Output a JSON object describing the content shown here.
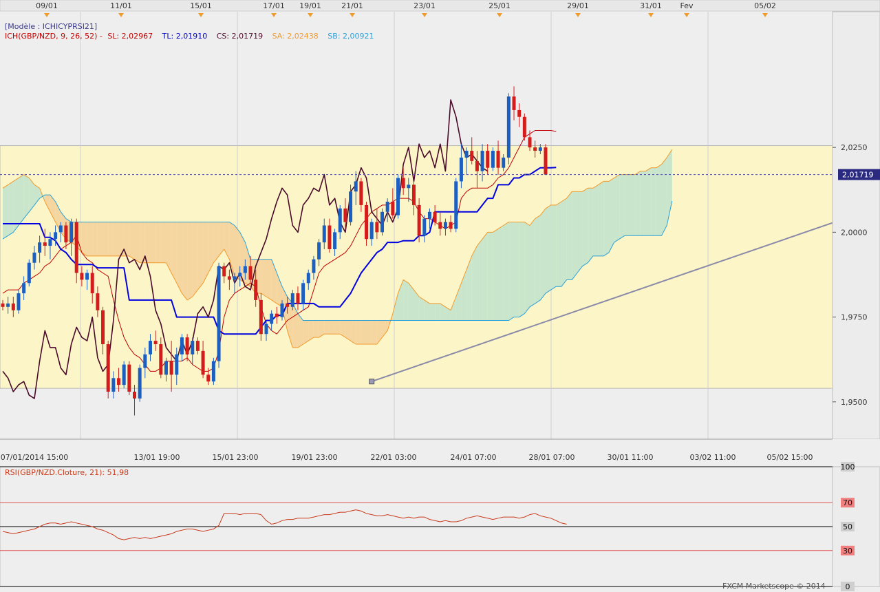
{
  "model_label": "[Modèle : ICHICYPRSI21]",
  "indicator": {
    "prefix": "ICH(GBP/NZD, 9, 26, 52) - ",
    "sl_text": "SL: 2,02967",
    "tl_text": "TL: 2,01910",
    "cs_text": "CS: 2,01719",
    "sa_text": "SA: 2,02438",
    "sb_text": "SB: 2,00921"
  },
  "rsi_label": "RSI(GBP/NZD.Cloture, 21): 51,98",
  "copyright": "FXCM Marketscope © 2014",
  "current_price_label": "2,01719",
  "top_dates": [
    "09/01",
    "11/01",
    "15/01",
    "17/01",
    "19/01",
    "21/01",
    "23/01",
    "25/01",
    "29/01",
    "31/01",
    "Fev",
    "05/02"
  ],
  "bottom_dates": [
    "07/01/2014 15:00",
    "13/01 19:00",
    "15/01 23:00",
    "19/01 23:00",
    "22/01 03:00",
    "24/01 07:00",
    "28/01 07:00",
    "30/01 11:00",
    "03/02 11:00",
    "05/02 15:00"
  ],
  "price_ticks": [
    "2,0250",
    "2,0000",
    "1,9750",
    "1,9500"
  ],
  "rsi_ticks": [
    "100",
    "70",
    "50",
    "30",
    "0"
  ],
  "colors": {
    "up": "#1c5fc0",
    "down": "#d41c1c",
    "tenkan": "#0000e0",
    "kijun": "#c00000",
    "chikou": "#4a0a2a",
    "senkou_a": "#f39a2c",
    "senkou_b": "#2aa0d8",
    "cloud_bull": "#c9e6cc",
    "cloud_bear": "#f5d6a0",
    "band": "#fbf5c8",
    "rsi": "#c83a1a"
  },
  "chart_data": {
    "type": "candlestick",
    "ylim": [
      1.939,
      2.065
    ],
    "rsi_ylim": [
      0,
      100
    ],
    "band": [
      1.954,
      2.0255
    ],
    "candles": [
      [
        1.979,
        1.98,
        1.977,
        1.978
      ],
      [
        1.978,
        1.981,
        1.976,
        1.979
      ],
      [
        1.979,
        1.981,
        1.975,
        1.977
      ],
      [
        1.977,
        1.983,
        1.976,
        1.982
      ],
      [
        1.982,
        1.987,
        1.98,
        1.985
      ],
      [
        1.985,
        1.992,
        1.984,
        1.991
      ],
      [
        1.991,
        1.996,
        1.989,
        1.994
      ],
      [
        1.994,
        1.999,
        1.991,
        1.997
      ],
      [
        1.997,
        2.001,
        1.993,
        1.996
      ],
      [
        1.996,
        2.0,
        1.992,
        1.998
      ],
      [
        1.998,
        2.002,
        1.996,
        2.0
      ],
      [
        2.0,
        2.003,
        1.997,
        2.002
      ],
      [
        2.002,
        2.003,
        1.995,
        1.997
      ],
      [
        1.997,
        2.004,
        1.993,
        2.003
      ],
      [
        2.003,
        2.004,
        1.985,
        1.988
      ],
      [
        1.988,
        1.99,
        1.984,
        1.986
      ],
      [
        1.986,
        1.989,
        1.983,
        1.988
      ],
      [
        1.988,
        1.99,
        1.979,
        1.982
      ],
      [
        1.982,
        1.984,
        1.975,
        1.977
      ],
      [
        1.977,
        1.978,
        1.964,
        1.967
      ],
      [
        1.967,
        1.968,
        1.951,
        1.953
      ],
      [
        1.953,
        1.959,
        1.951,
        1.957
      ],
      [
        1.957,
        1.96,
        1.953,
        1.955
      ],
      [
        1.955,
        1.962,
        1.954,
        1.961
      ],
      [
        1.961,
        1.962,
        1.952,
        1.953
      ],
      [
        1.953,
        1.955,
        1.946,
        1.951
      ],
      [
        1.951,
        1.961,
        1.95,
        1.96
      ],
      [
        1.96,
        1.966,
        1.957,
        1.964
      ],
      [
        1.964,
        1.97,
        1.962,
        1.968
      ],
      [
        1.968,
        1.971,
        1.965,
        1.967
      ],
      [
        1.967,
        1.969,
        1.957,
        1.958
      ],
      [
        1.958,
        1.963,
        1.956,
        1.962
      ],
      [
        1.962,
        1.968,
        1.953,
        1.958
      ],
      [
        1.958,
        1.966,
        1.955,
        1.964
      ],
      [
        1.964,
        1.97,
        1.962,
        1.969
      ],
      [
        1.969,
        1.97,
        1.962,
        1.964
      ],
      [
        1.964,
        1.969,
        1.961,
        1.968
      ],
      [
        1.968,
        1.969,
        1.964,
        1.965
      ],
      [
        1.965,
        1.968,
        1.957,
        1.958
      ],
      [
        1.958,
        1.96,
        1.955,
        1.956
      ],
      [
        1.956,
        1.963,
        1.955,
        1.962
      ],
      [
        1.962,
        1.991,
        1.96,
        1.99
      ],
      [
        1.99,
        1.991,
        1.985,
        1.987
      ],
      [
        1.987,
        1.989,
        1.983,
        1.986
      ],
      [
        1.986,
        1.988,
        1.982,
        1.987
      ],
      [
        1.987,
        1.99,
        1.984,
        1.988
      ],
      [
        1.988,
        1.992,
        1.986,
        1.99
      ],
      [
        1.99,
        1.993,
        1.985,
        1.986
      ],
      [
        1.986,
        1.989,
        1.978,
        1.98
      ],
      [
        1.98,
        1.982,
        1.968,
        1.97
      ],
      [
        1.97,
        1.974,
        1.968,
        1.973
      ],
      [
        1.973,
        1.977,
        1.971,
        1.976
      ],
      [
        1.976,
        1.978,
        1.973,
        1.975
      ],
      [
        1.975,
        1.98,
        1.974,
        1.979
      ],
      [
        1.979,
        1.981,
        1.976,
        1.978
      ],
      [
        1.978,
        1.983,
        1.977,
        1.982
      ],
      [
        1.982,
        1.984,
        1.977,
        1.979
      ],
      [
        1.979,
        1.986,
        1.977,
        1.985
      ],
      [
        1.985,
        1.989,
        1.983,
        1.988
      ],
      [
        1.988,
        1.993,
        1.986,
        1.992
      ],
      [
        1.992,
        1.998,
        1.99,
        1.997
      ],
      [
        1.997,
        2.004,
        1.995,
        2.002
      ],
      [
        2.002,
        2.004,
        1.994,
        1.995
      ],
      [
        1.995,
        2.001,
        1.993,
        2.0
      ],
      [
        2.0,
        2.008,
        1.998,
        2.007
      ],
      [
        2.007,
        2.01,
        2.001,
        2.003
      ],
      [
        2.003,
        2.014,
        2.002,
        2.012
      ],
      [
        2.012,
        2.018,
        2.008,
        2.015
      ],
      [
        2.015,
        2.016,
        2.006,
        2.008
      ],
      [
        2.008,
        2.009,
        1.996,
        1.998
      ],
      [
        1.998,
        2.004,
        1.996,
        2.003
      ],
      [
        2.003,
        2.007,
        1.998,
        2.0
      ],
      [
        2.0,
        2.007,
        1.999,
        2.006
      ],
      [
        2.006,
        2.01,
        2.003,
        2.009
      ],
      [
        2.009,
        2.013,
        2.004,
        2.005
      ],
      [
        2.005,
        2.017,
        2.004,
        2.016
      ],
      [
        2.016,
        2.019,
        2.011,
        2.013
      ],
      [
        2.013,
        2.016,
        2.009,
        2.014
      ],
      [
        2.014,
        2.015,
        2.005,
        2.008
      ],
      [
        2.008,
        2.01,
        1.997,
        1.999
      ],
      [
        1.999,
        2.005,
        1.997,
        2.004
      ],
      [
        2.004,
        2.007,
        2.001,
        2.006
      ],
      [
        2.006,
        2.008,
        2.002,
        2.003
      ],
      [
        2.003,
        2.006,
        1.999,
        2.001
      ],
      [
        2.001,
        2.004,
        1.999,
        2.003
      ],
      [
        2.003,
        2.005,
        2.0,
        2.001
      ],
      [
        2.001,
        2.016,
        2.0,
        2.015
      ],
      [
        2.015,
        2.026,
        2.013,
        2.022
      ],
      [
        2.022,
        2.025,
        2.017,
        2.024
      ],
      [
        2.024,
        2.028,
        2.02,
        2.021
      ],
      [
        2.021,
        2.024,
        2.013,
        2.018
      ],
      [
        2.018,
        2.026,
        2.015,
        2.024
      ],
      [
        2.024,
        2.026,
        2.017,
        2.019
      ],
      [
        2.019,
        2.025,
        2.018,
        2.024
      ],
      [
        2.024,
        2.027,
        2.017,
        2.019
      ],
      [
        2.019,
        2.023,
        2.018,
        2.022
      ],
      [
        2.022,
        2.041,
        2.02,
        2.04
      ],
      [
        2.04,
        2.043,
        2.033,
        2.036
      ],
      [
        2.036,
        2.038,
        2.031,
        2.034
      ],
      [
        2.034,
        2.035,
        2.027,
        2.028
      ],
      [
        2.028,
        2.03,
        2.024,
        2.025
      ],
      [
        2.025,
        2.027,
        2.022,
        2.024
      ],
      [
        2.024,
        2.026,
        2.023,
        2.025
      ],
      [
        2.025,
        2.026,
        2.017,
        2.017
      ]
    ],
    "chikou": [
      1.959,
      1.957,
      1.953,
      1.955,
      1.956,
      1.952,
      1.951,
      1.962,
      1.971,
      1.966,
      1.966,
      1.96,
      1.958,
      1.967,
      1.972,
      1.969,
      1.968,
      1.975,
      1.963,
      1.959,
      1.961,
      1.974,
      1.992,
      1.995,
      1.991,
      1.992,
      1.989,
      1.993,
      1.987,
      1.977,
      1.973,
      1.966,
      1.964,
      1.962,
      1.968,
      1.964,
      1.968,
      1.976,
      1.978,
      1.975,
      1.98,
      1.99,
      1.989,
      1.991,
      1.985,
      1.988,
      1.984,
      1.983,
      1.99,
      1.994,
      1.998,
      2.004,
      2.009,
      2.013,
      2.011,
      2.002,
      2.0,
      2.008,
      2.01,
      2.013,
      2.012,
      2.017,
      2.008,
      2.01,
      2.003,
      2.0,
      2.012,
      2.014,
      2.019,
      2.016,
      2.006,
      2.004,
      2.002,
      2.006,
      2.003,
      2.007,
      2.02,
      2.025,
      2.015,
      2.026,
      2.022,
      2.024,
      2.019,
      2.026,
      2.018,
      2.039,
      2.034,
      2.026,
      2.022,
      2.023,
      2.021,
      2.019,
      2.018
    ],
    "chikou_start": 0,
    "tenkan": [
      2.0025,
      2.0025,
      2.0025,
      2.0025,
      2.0025,
      2.0025,
      2.0025,
      2.0025,
      1.9985,
      1.9985,
      1.9975,
      1.995,
      1.994,
      1.992,
      1.9905,
      1.9905,
      1.9905,
      1.9905,
      1.9895,
      1.9895,
      1.9895,
      1.9895,
      1.9895,
      1.9895,
      1.98,
      1.98,
      1.98,
      1.98,
      1.98,
      1.98,
      1.98,
      1.98,
      1.98,
      1.975,
      1.975,
      1.975,
      1.975,
      1.975,
      1.975,
      1.975,
      1.975,
      1.971,
      1.97,
      1.97,
      1.97,
      1.97,
      1.97,
      1.97,
      1.97,
      1.972,
      1.974,
      1.974,
      1.9755,
      1.9755,
      1.979,
      1.979,
      1.979,
      1.979,
      1.979,
      1.979,
      1.978,
      1.978,
      1.978,
      1.978,
      1.978,
      1.98,
      1.982,
      1.985,
      1.988,
      1.99,
      1.992,
      1.994,
      1.995,
      1.997,
      1.997,
      1.997,
      1.9975,
      1.9975,
      1.9975,
      1.999,
      1.999,
      2.0,
      2.006,
      2.006,
      2.006,
      2.006,
      2.006,
      2.006,
      2.006,
      2.006,
      2.006,
      2.008,
      2.01,
      2.01,
      2.014,
      2.014,
      2.014,
      2.016,
      2.016,
      2.017,
      2.017,
      2.018,
      2.019,
      2.019,
      2.019,
      2.0191
    ],
    "kijun": [
      1.982,
      1.983,
      1.983,
      1.983,
      1.985,
      1.986,
      1.987,
      1.988,
      1.99,
      1.991,
      1.993,
      1.995,
      1.996,
      1.997,
      1.999,
      1.994,
      1.992,
      1.991,
      1.989,
      1.988,
      1.987,
      1.98,
      1.974,
      1.969,
      1.966,
      1.964,
      1.963,
      1.961,
      1.959,
      1.959,
      1.96,
      1.962,
      1.962,
      1.962,
      1.962,
      1.963,
      1.961,
      1.96,
      1.959,
      1.959,
      1.96,
      1.965,
      1.975,
      1.98,
      1.982,
      1.983,
      1.984,
      1.985,
      1.984,
      1.978,
      1.973,
      1.971,
      1.97,
      1.972,
      1.974,
      1.975,
      1.976,
      1.977,
      1.978,
      1.983,
      1.988,
      1.99,
      1.991,
      1.992,
      1.993,
      1.994,
      1.996,
      1.999,
      2.002,
      2.004,
      2.006,
      2.007,
      2.008,
      2.008,
      2.009,
      2.01,
      2.01,
      2.01,
      2.009,
      2.006,
      2.004,
      2.004,
      2.003,
      2.002,
      2.001,
      2.002,
      2.003,
      2.01,
      2.012,
      2.013,
      2.013,
      2.013,
      2.013,
      2.014,
      2.016,
      2.017,
      2.019,
      2.022,
      2.025,
      2.028,
      2.029,
      2.03,
      2.03,
      2.03,
      2.03,
      2.0297
    ],
    "senkou_a": [
      2.013,
      2.014,
      2.015,
      2.016,
      2.017,
      2.016,
      2.014,
      2.013,
      2.009,
      2.006,
      2.003,
      2.0,
      1.998,
      1.997,
      1.996,
      1.994,
      1.993,
      1.993,
      1.993,
      1.993,
      1.993,
      1.993,
      1.993,
      1.993,
      1.993,
      1.992,
      1.991,
      1.991,
      1.991,
      1.991,
      1.991,
      1.991,
      1.988,
      1.985,
      1.982,
      1.98,
      1.981,
      1.983,
      1.985,
      1.988,
      1.991,
      1.993,
      1.995,
      1.992,
      1.987,
      1.986,
      1.985,
      1.984,
      1.982,
      1.982,
      1.981,
      1.98,
      1.979,
      1.978,
      1.971,
      1.966,
      1.966,
      1.967,
      1.968,
      1.969,
      1.969,
      1.97,
      1.97,
      1.97,
      1.97,
      1.969,
      1.968,
      1.967,
      1.967,
      1.967,
      1.967,
      1.967,
      1.969,
      1.971,
      1.976,
      1.982,
      1.986,
      1.985,
      1.983,
      1.981,
      1.98,
      1.979,
      1.979,
      1.979,
      1.978,
      1.977,
      1.981,
      1.985,
      1.989,
      1.993,
      1.996,
      1.998,
      2.0,
      2.0,
      2.001,
      2.002,
      2.003,
      2.003,
      2.003,
      2.003,
      2.002,
      2.004,
      2.005,
      2.007,
      2.008,
      2.008,
      2.009,
      2.01,
      2.012,
      2.012,
      2.012,
      2.013,
      2.013,
      2.014,
      2.015,
      2.015,
      2.016,
      2.017,
      2.017,
      2.017,
      2.017,
      2.018,
      2.018,
      2.019,
      2.019,
      2.02,
      2.022,
      2.0244
    ],
    "senkou_b": [
      1.998,
      1.999,
      2.0,
      2.002,
      2.004,
      2.006,
      2.008,
      2.01,
      2.011,
      2.011,
      2.009,
      2.006,
      2.004,
      2.003,
      2.003,
      2.003,
      2.003,
      2.003,
      2.003,
      2.003,
      2.003,
      2.003,
      2.003,
      2.003,
      2.003,
      2.003,
      2.003,
      2.003,
      2.003,
      2.003,
      2.003,
      2.003,
      2.003,
      2.003,
      2.003,
      2.003,
      2.003,
      2.003,
      2.003,
      2.003,
      2.003,
      2.003,
      2.003,
      2.003,
      2.002,
      2.0,
      1.997,
      1.992,
      1.992,
      1.992,
      1.992,
      1.992,
      1.988,
      1.984,
      1.981,
      1.979,
      1.976,
      1.974,
      1.974,
      1.974,
      1.974,
      1.974,
      1.974,
      1.974,
      1.974,
      1.974,
      1.974,
      1.974,
      1.974,
      1.974,
      1.974,
      1.974,
      1.974,
      1.974,
      1.974,
      1.974,
      1.974,
      1.974,
      1.974,
      1.974,
      1.974,
      1.974,
      1.974,
      1.974,
      1.974,
      1.974,
      1.974,
      1.974,
      1.974,
      1.974,
      1.974,
      1.974,
      1.974,
      1.974,
      1.974,
      1.974,
      1.974,
      1.975,
      1.975,
      1.976,
      1.978,
      1.979,
      1.98,
      1.982,
      1.983,
      1.984,
      1.984,
      1.986,
      1.986,
      1.988,
      1.99,
      1.991,
      1.993,
      1.993,
      1.993,
      1.994,
      1.997,
      1.998,
      1.999,
      1.999,
      1.999,
      1.999,
      1.999,
      1.999,
      1.999,
      1.999,
      2.002,
      2.0092
    ],
    "trendline": {
      "from": [
        70,
        1.956
      ],
      "to": [
        193,
        2.0218
      ]
    },
    "rsi": [
      46,
      45,
      44,
      45,
      46,
      47,
      48,
      50,
      52,
      53,
      53,
      52,
      53,
      54,
      53,
      52,
      51,
      50,
      48,
      47,
      45,
      43,
      40,
      39,
      40,
      41,
      40,
      41,
      40,
      41,
      42,
      43,
      44,
      46,
      47,
      48,
      48,
      47,
      46,
      47,
      48,
      51,
      61,
      61,
      61,
      60,
      61,
      61,
      61,
      60,
      55,
      52,
      53,
      55,
      56,
      56,
      57,
      57,
      57,
      58,
      59,
      60,
      60,
      61,
      62,
      62,
      63,
      64,
      63,
      61,
      60,
      59,
      59,
      60,
      59,
      58,
      57,
      58,
      57,
      58,
      58,
      56,
      55,
      54,
      55,
      54,
      54,
      55,
      57,
      58,
      59,
      58,
      57,
      56,
      57,
      58,
      58,
      58,
      57,
      58,
      60,
      61,
      59,
      58,
      57,
      55,
      53,
      52
    ]
  }
}
